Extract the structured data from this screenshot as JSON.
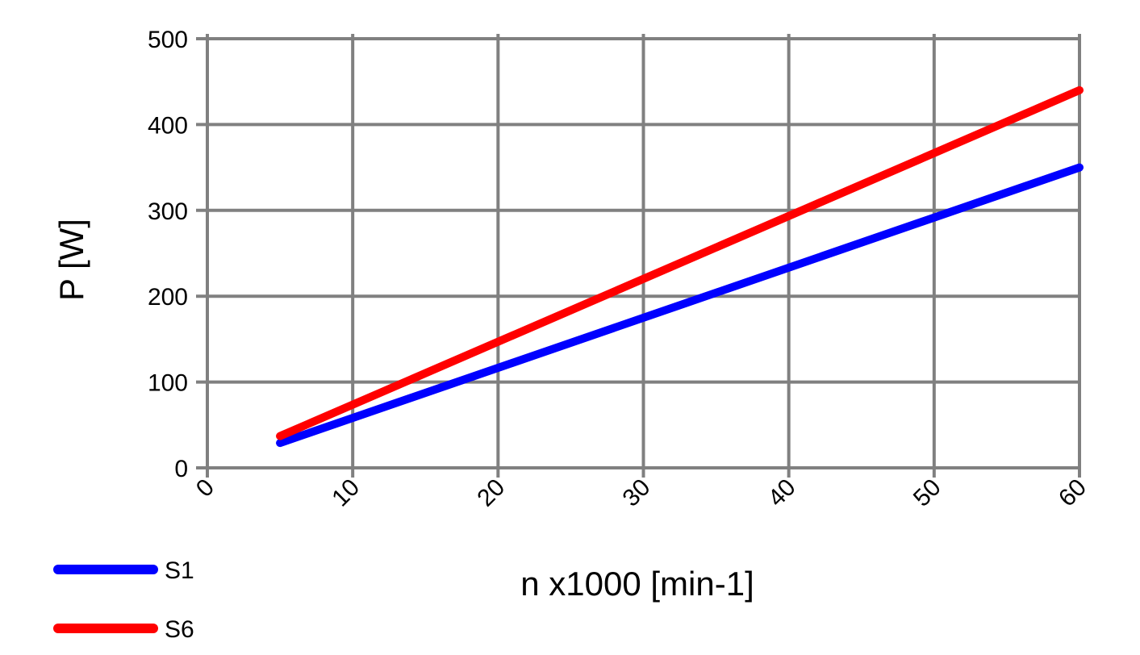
{
  "chart_data": {
    "type": "line",
    "title": "",
    "xlabel": "n x1000 [min-1]",
    "ylabel": "P [W]",
    "xlim": [
      0,
      60
    ],
    "ylim": [
      0,
      500
    ],
    "x_ticks": [
      0,
      10,
      20,
      30,
      40,
      50,
      60
    ],
    "y_ticks": [
      0,
      100,
      200,
      300,
      400,
      500
    ],
    "grid": true,
    "legend_position": "bottom-left",
    "series": [
      {
        "name": "S1",
        "color": "#0000ff",
        "x": [
          5,
          60
        ],
        "y": [
          29,
          350
        ]
      },
      {
        "name": "S6",
        "color": "#ff0000",
        "x": [
          5,
          60
        ],
        "y": [
          37,
          440
        ]
      }
    ]
  }
}
